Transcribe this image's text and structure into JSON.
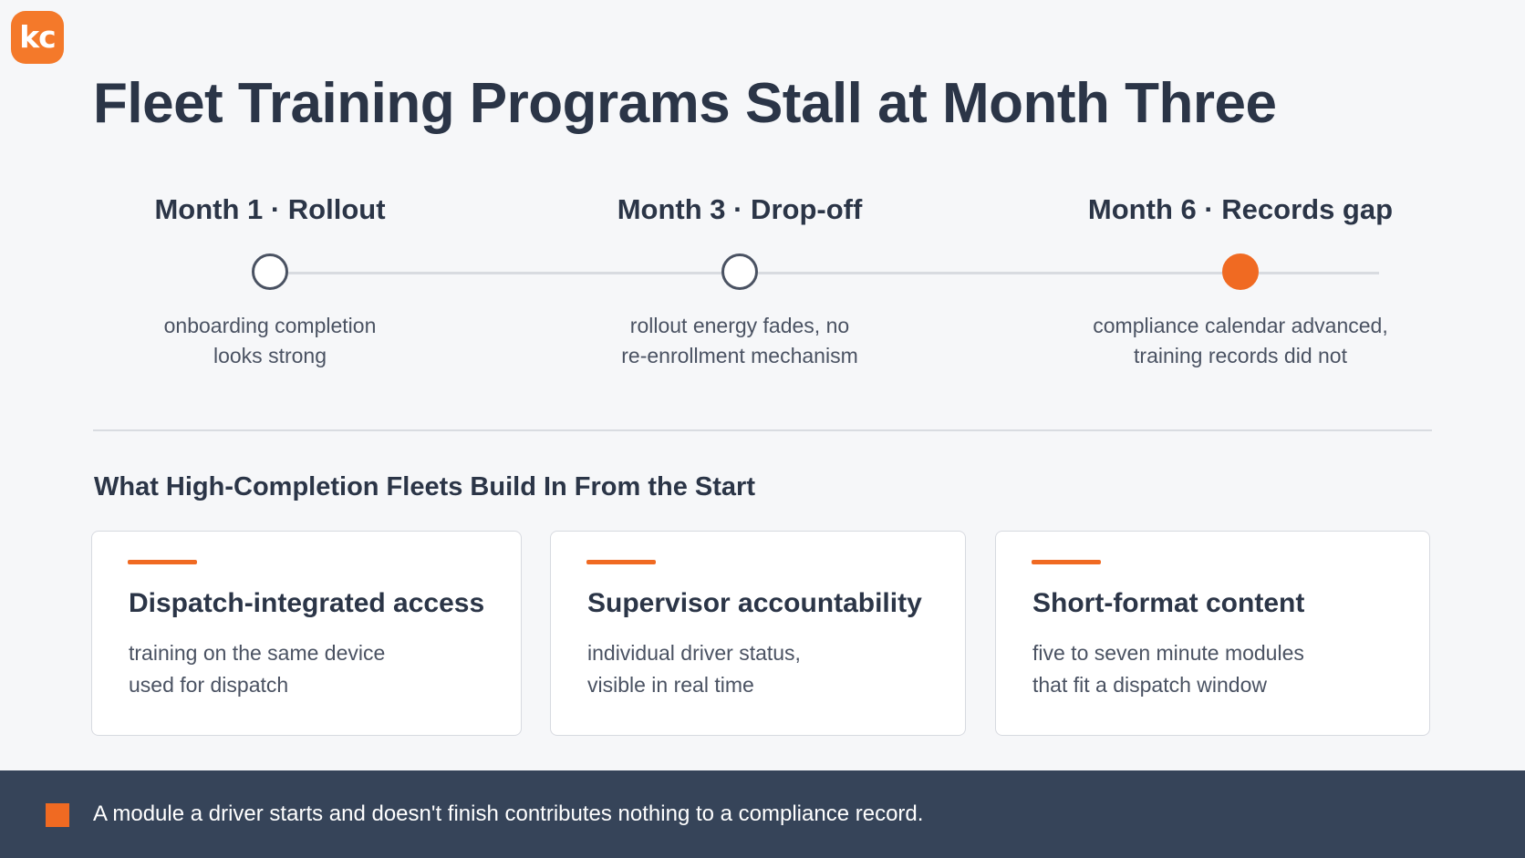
{
  "logo": {
    "text": "kc"
  },
  "title": "Fleet Training Programs Stall at Month Three",
  "timeline": {
    "milestones": [
      {
        "title": "Month 1 · Rollout",
        "line1": "onboarding completion",
        "line2": "looks strong",
        "highlighted": false
      },
      {
        "title": "Month 3 · Drop-off",
        "line1": "rollout energy fades, no",
        "line2": "re-enrollment mechanism",
        "highlighted": false
      },
      {
        "title": "Month 6 · Records gap",
        "line1": "compliance calendar advanced,",
        "line2": "training records did not",
        "highlighted": true
      }
    ]
  },
  "section": {
    "title": "What High-Completion Fleets Build In From the Start",
    "cards": [
      {
        "title": "Dispatch-integrated access",
        "line1": "training on the same device",
        "line2": "used for dispatch"
      },
      {
        "title": "Supervisor accountability",
        "line1": "individual driver status,",
        "line2": "visible in real time"
      },
      {
        "title": "Short-format content",
        "line1": "five to seven minute modules",
        "line2": "that fit a dispatch window"
      }
    ]
  },
  "banner": {
    "text": "A module a driver starts and doesn't finish contributes nothing to a compliance record."
  },
  "colors": {
    "accent": "#f06a22",
    "banner_bg": "#364459",
    "heading": "#2b3547"
  }
}
